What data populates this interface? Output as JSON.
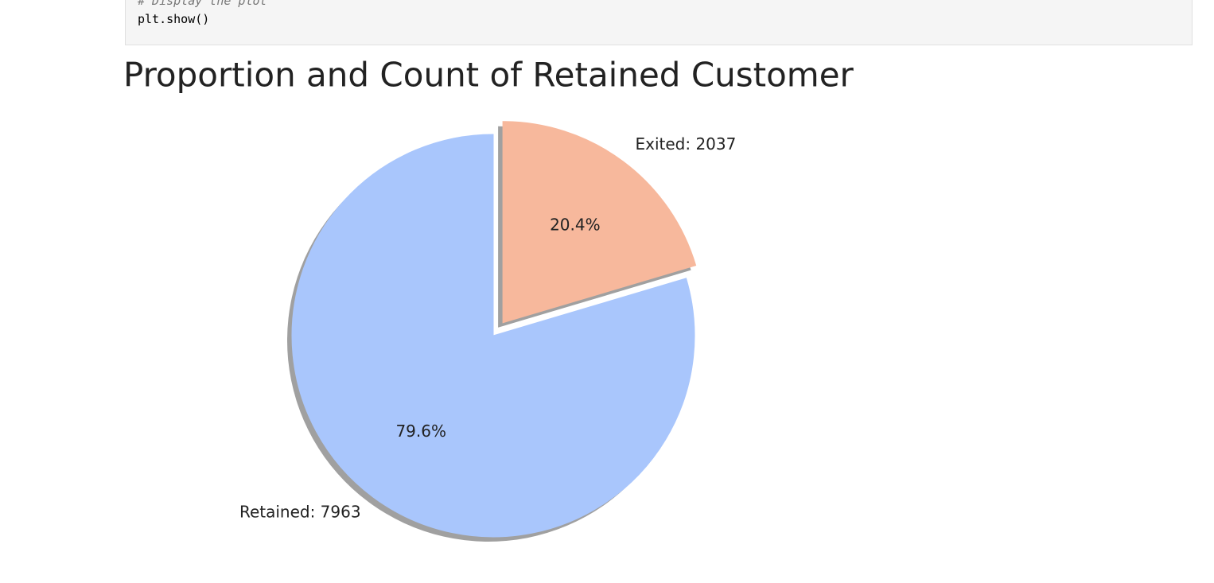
{
  "code_cell": {
    "lines": [
      "# Display the plot",
      "plt.show()"
    ]
  },
  "chart_data": {
    "type": "pie",
    "title": "Proportion and Count of  Retained Customer",
    "categories": [
      "Retained: 7963",
      "Exited: 2037"
    ],
    "values": [
      79.6,
      20.4
    ],
    "value_labels": [
      "79.6%",
      "20.4%"
    ],
    "colors": [
      "#a9c6fc",
      "#f7b89c"
    ],
    "explode": [
      0,
      0.08
    ],
    "start_angle": 90,
    "shadow": true
  }
}
